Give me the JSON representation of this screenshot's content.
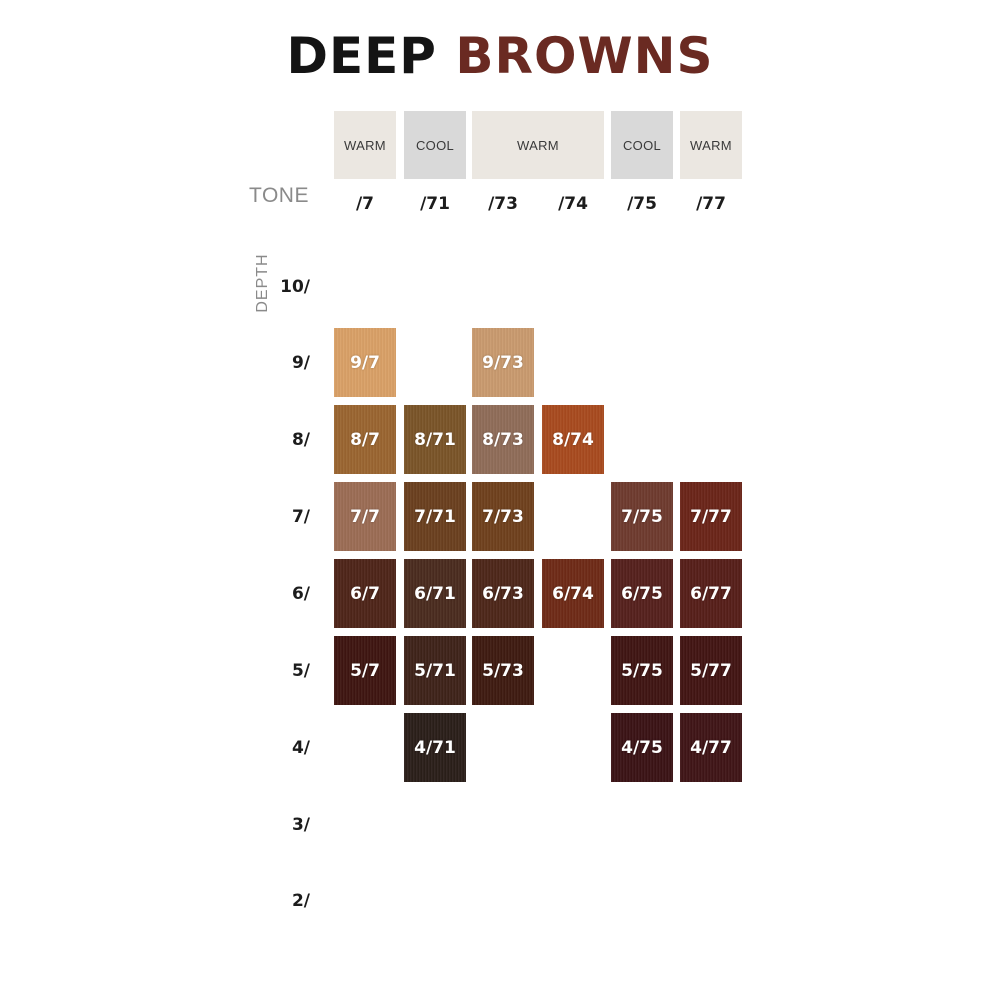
{
  "title": {
    "word1": "DEEP",
    "word2": "BROWNS"
  },
  "tone_header": "TONE",
  "depth_header": "DEPTH",
  "temperature_bands": [
    {
      "label": "WARM",
      "type": "warm"
    },
    {
      "label": "COOL",
      "type": "cool"
    },
    {
      "label": "WARM",
      "type": "warm"
    },
    {
      "label": "COOL",
      "type": "cool"
    },
    {
      "label": "WARM",
      "type": "warm"
    }
  ],
  "tones": [
    "/7",
    "/71",
    "/73",
    "/74",
    "/75",
    "/77"
  ],
  "depths": [
    "10/",
    "9/",
    "8/",
    "7/",
    "6/",
    "5/",
    "4/",
    "3/",
    "2/"
  ],
  "swatches": [
    {
      "label": "9/7",
      "color": "#d9a066"
    },
    {
      "label": "9/73",
      "color": "#c99a6e"
    },
    {
      "label": "8/7",
      "color": "#9a6530"
    },
    {
      "label": "8/71",
      "color": "#7a5428"
    },
    {
      "label": "8/73",
      "color": "#8f6c58"
    },
    {
      "label": "8/74",
      "color": "#a84a1e"
    },
    {
      "label": "7/7",
      "color": "#9b6c54"
    },
    {
      "label": "7/71",
      "color": "#6a3f1e"
    },
    {
      "label": "7/73",
      "color": "#6f401c"
    },
    {
      "label": "7/75",
      "color": "#6e3a2e"
    },
    {
      "label": "7/77",
      "color": "#6a2418"
    },
    {
      "label": "6/7",
      "color": "#4e2418"
    },
    {
      "label": "6/71",
      "color": "#4a2b1e"
    },
    {
      "label": "6/73",
      "color": "#4d2619"
    },
    {
      "label": "6/74",
      "color": "#6e2a16"
    },
    {
      "label": "6/75",
      "color": "#55201c"
    },
    {
      "label": "6/77",
      "color": "#561e19"
    },
    {
      "label": "5/7",
      "color": "#3e1510"
    },
    {
      "label": "5/71",
      "color": "#3e2219"
    },
    {
      "label": "5/73",
      "color": "#3e1a10"
    },
    {
      "label": "5/75",
      "color": "#3f1412"
    },
    {
      "label": "5/77",
      "color": "#421413"
    },
    {
      "label": "4/71",
      "color": "#2a1e19"
    },
    {
      "label": "4/75",
      "color": "#3a1215"
    },
    {
      "label": "4/77",
      "color": "#3f1416"
    }
  ]
}
